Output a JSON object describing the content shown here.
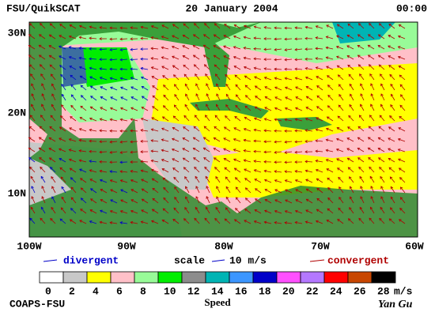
{
  "header": {
    "left": "FSU/QuikSCAT",
    "center": "20 January 2004",
    "right": "00:00"
  },
  "latitude_labels": [
    "30N",
    "20N",
    "10N"
  ],
  "longitude_labels": [
    "100W",
    "90W",
    "80W",
    "70W",
    "60W"
  ],
  "legend": {
    "divergent": "divergent",
    "scale": "scale",
    "scale_value": "10 m/s",
    "convergent": "convergent"
  },
  "colorbar": {
    "colors": [
      "#ffffff",
      "#c8c8c8",
      "#ffff00",
      "#ffc0c8",
      "#98fb98",
      "#00ee00",
      "#8c8c8c",
      "#00b4b4",
      "#3c96ff",
      "#0000c8",
      "#ff50ff",
      "#b478ff",
      "#ff0000",
      "#c84600",
      "#000000"
    ],
    "labels": [
      "0",
      "2",
      "4",
      "6",
      "8",
      "10",
      "12",
      "14",
      "16",
      "18",
      "20",
      "22",
      "24",
      "26",
      "28"
    ],
    "unit": "m/s",
    "title": "Speed"
  },
  "footer": {
    "left": "COAPS-FSU",
    "signature": "Yan Gu"
  }
}
